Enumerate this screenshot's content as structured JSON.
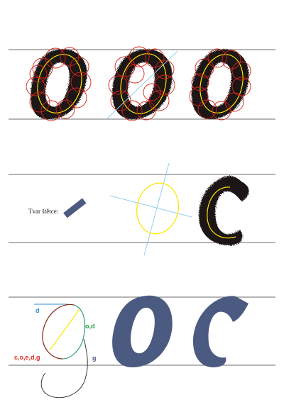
{
  "brush_label": "Tvar štětce:",
  "annotations": {
    "top": "d",
    "right": "o,d",
    "left_bottom": "c,o,e,d,g",
    "tail": "g"
  },
  "colors": {
    "ink": "#1b1512",
    "guide_line": "#6b6b6b",
    "skeleton": "#ffe600",
    "circles": "#d4241c",
    "axis": "#8fd2ee",
    "brush": "#4b5a80",
    "label_blue": "#2f8fd8",
    "label_green": "#1f9a3a",
    "label_red": "#d62a1e",
    "label_navy": "#4b5a80",
    "stroke_green": "#2fa07c",
    "stroke_dark": "#3a3a3a"
  }
}
